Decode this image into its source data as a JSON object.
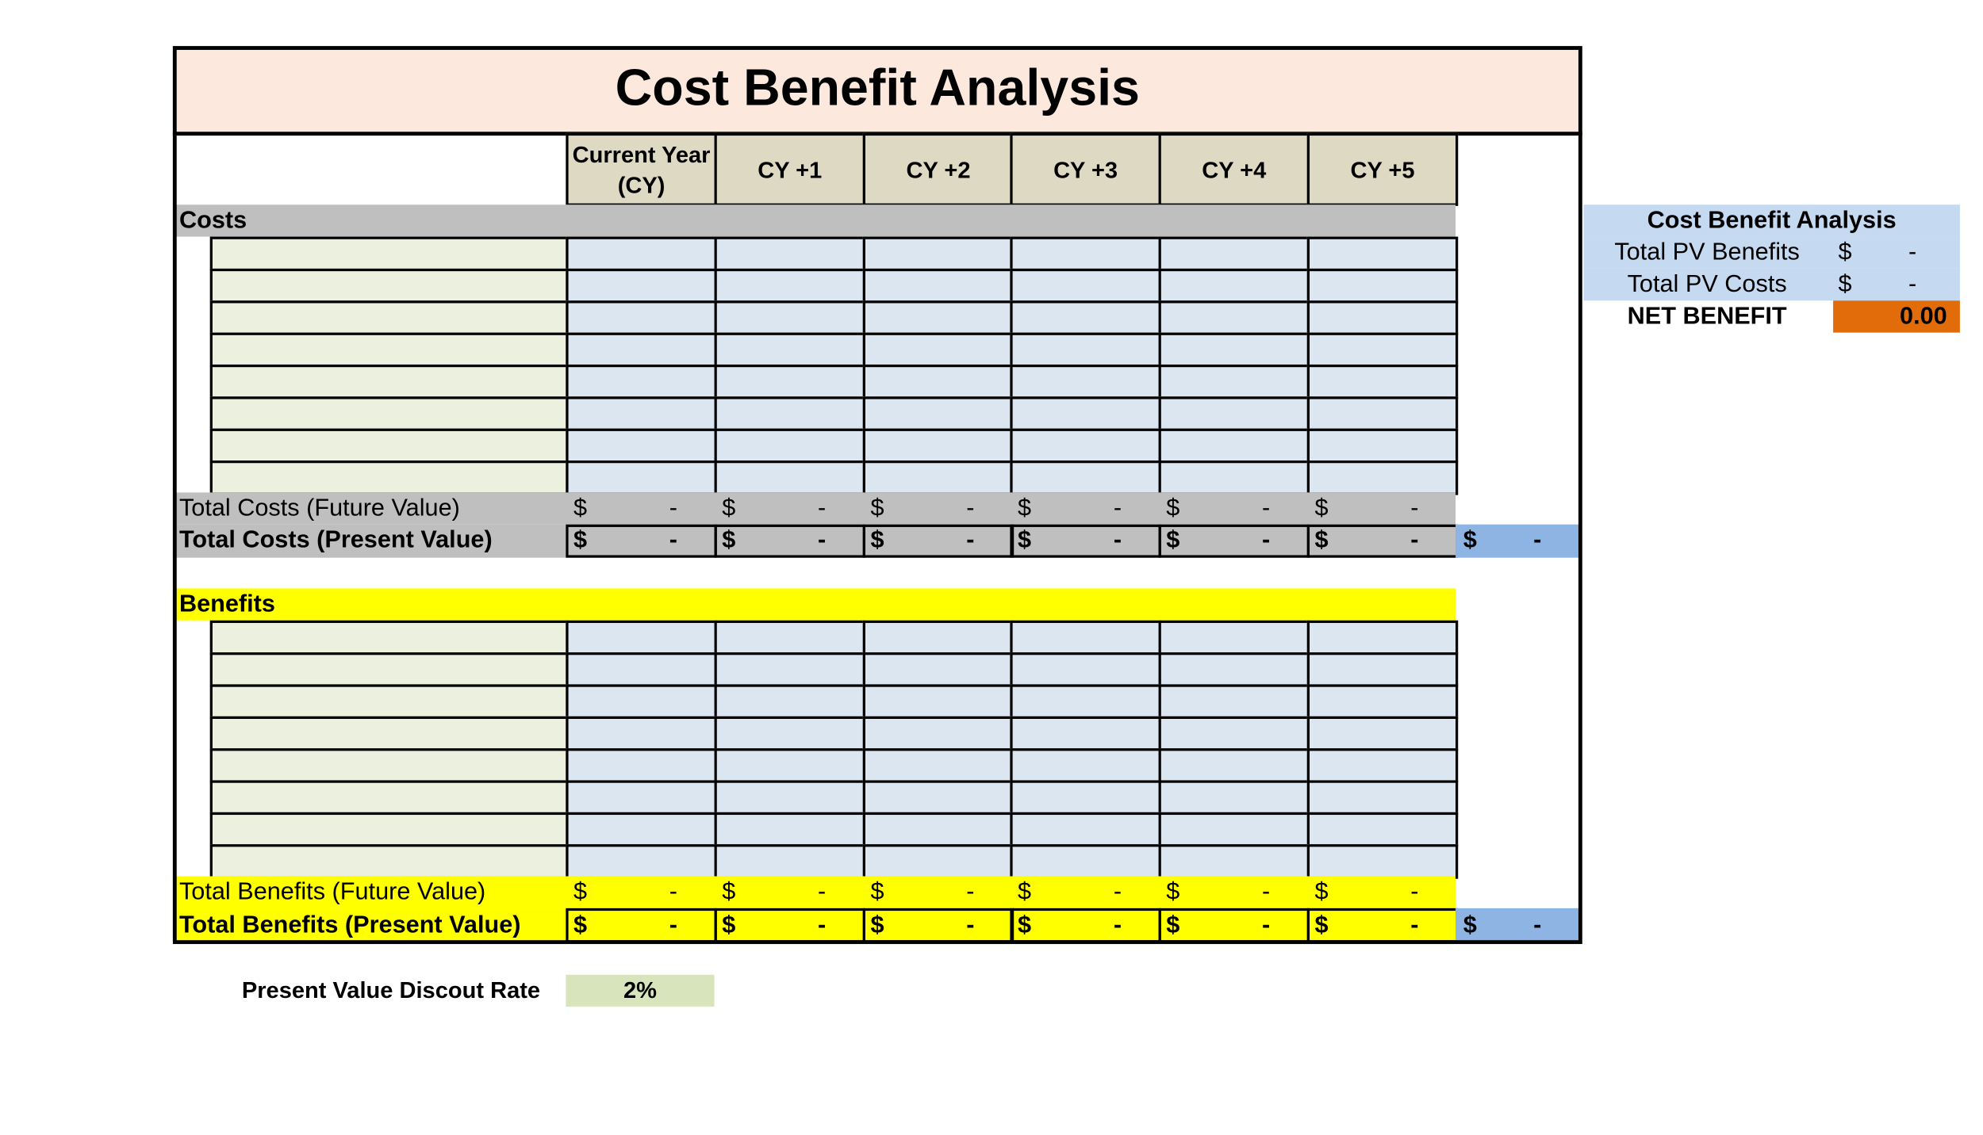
{
  "title": "Cost Benefit Analysis",
  "columns": [
    "Current Year (CY)",
    "CY +1",
    "CY +2",
    "CY +3",
    "CY +4",
    "CY +5"
  ],
  "costs": {
    "heading": "Costs",
    "total_fv": {
      "label": "Total Costs (Future Value)",
      "cells": [
        {
          "currency": "$",
          "amount": "-"
        },
        {
          "currency": "$",
          "amount": "-"
        },
        {
          "currency": "$",
          "amount": "-"
        },
        {
          "currency": "$",
          "amount": "-"
        },
        {
          "currency": "$",
          "amount": "-"
        },
        {
          "currency": "$",
          "amount": "-"
        }
      ]
    },
    "total_pv": {
      "label": "Total Costs (Present Value)",
      "cells": [
        {
          "currency": "$",
          "amount": "-"
        },
        {
          "currency": "$",
          "amount": "-"
        },
        {
          "currency": "$",
          "amount": "-"
        },
        {
          "currency": "$",
          "amount": "-"
        },
        {
          "currency": "$",
          "amount": "-"
        },
        {
          "currency": "$",
          "amount": "-"
        }
      ],
      "grand_total": {
        "currency": "$",
        "amount": "-"
      }
    }
  },
  "benefits": {
    "heading": "Benefits",
    "total_fv": {
      "label": "Total Benefits (Future Value)",
      "cells": [
        {
          "currency": "$",
          "amount": "-"
        },
        {
          "currency": "$",
          "amount": "-"
        },
        {
          "currency": "$",
          "amount": "-"
        },
        {
          "currency": "$",
          "amount": "-"
        },
        {
          "currency": "$",
          "amount": "-"
        },
        {
          "currency": "$",
          "amount": "-"
        }
      ]
    },
    "total_pv": {
      "label": "Total Benefits (Present Value)",
      "cells": [
        {
          "currency": "$",
          "amount": "-"
        },
        {
          "currency": "$",
          "amount": "-"
        },
        {
          "currency": "$",
          "amount": "-"
        },
        {
          "currency": "$",
          "amount": "-"
        },
        {
          "currency": "$",
          "amount": "-"
        },
        {
          "currency": "$",
          "amount": "-"
        }
      ],
      "grand_total": {
        "currency": "$",
        "amount": "-"
      }
    }
  },
  "discount_rate": {
    "label": "Present Value Discout Rate",
    "value": "2%"
  },
  "summary": {
    "title": "Cost Benefit Analysis",
    "rows": [
      {
        "label": "Total PV Benefits",
        "currency": "$",
        "amount": "-"
      },
      {
        "label": "Total PV Costs",
        "currency": "$",
        "amount": "-"
      }
    ],
    "net": {
      "label": "NET BENEFIT",
      "value": "0.00"
    }
  }
}
